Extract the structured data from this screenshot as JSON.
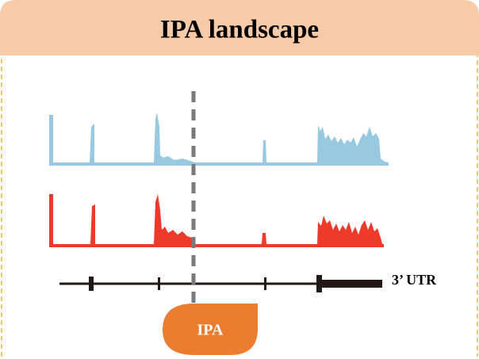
{
  "header": {
    "title": "IPA landscape"
  },
  "gene": {
    "label": "3’ UTR"
  },
  "site": {
    "label": "IPA"
  }
}
